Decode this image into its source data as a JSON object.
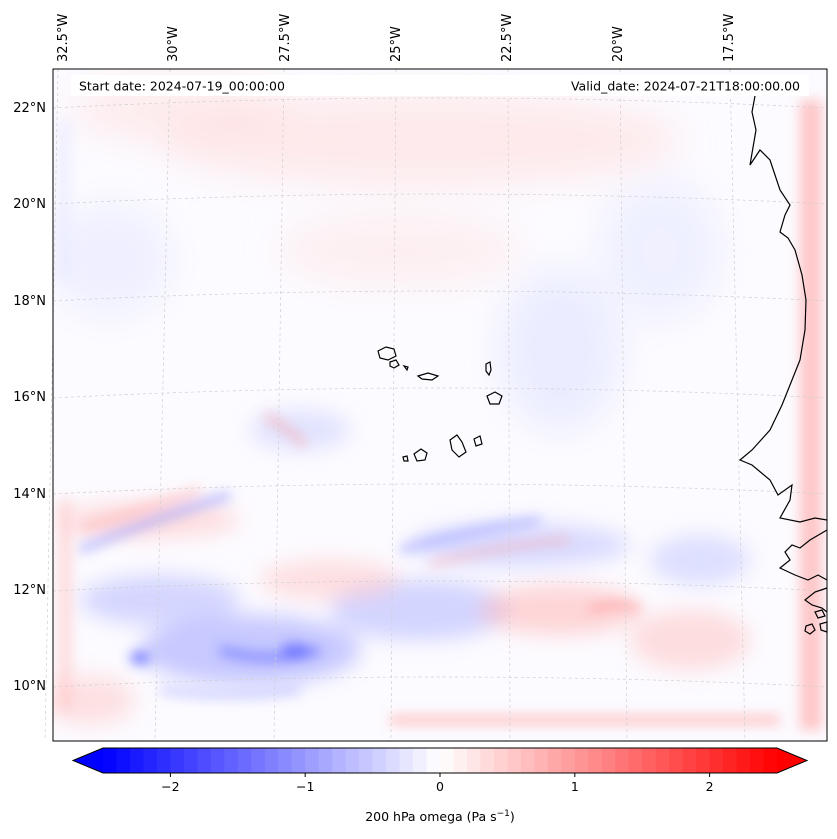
{
  "map": {
    "header": {
      "start_date": "Start date: 2024-07-19_00:00:00",
      "valid_date": "Valid_date: 2024-07-21T18:00:00.00"
    },
    "longitude_labels": [
      "32.5°W",
      "30°W",
      "27.5°W",
      "25°W",
      "22.5°W",
      "20°W",
      "17.5°W"
    ],
    "latitude_labels": [
      "22°N",
      "20°N",
      "18°N",
      "16°N",
      "14°N",
      "12°N",
      "10°N"
    ],
    "colorbar": {
      "ticks": [
        "−2",
        "−1",
        "0",
        "1",
        "2"
      ],
      "tick_values": [
        -2,
        -1,
        0,
        1,
        2
      ],
      "range": [
        -2.75,
        2.75
      ],
      "label": "200 hPa omega (Pa s",
      "label_sup": "−1",
      "label_close": ")",
      "colors": {
        "negative": "#0000ff",
        "zero": "#ffffff",
        "positive": "#ff0000"
      }
    }
  }
}
